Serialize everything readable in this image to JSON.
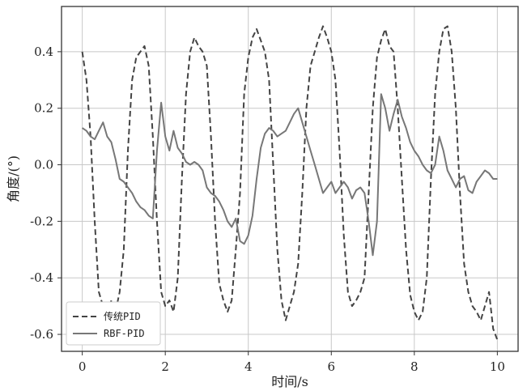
{
  "chart_data": {
    "type": "line",
    "xlabel": "时间/s",
    "ylabel": "角度/(°)",
    "xlim": [
      -0.5,
      10.5
    ],
    "ylim": [
      -0.66,
      0.56
    ],
    "xticks": [
      0,
      2,
      4,
      6,
      8,
      10
    ],
    "xtick_labels": [
      "0",
      "2",
      "4",
      "6",
      "8",
      "10"
    ],
    "yticks": [
      0.4,
      0.2,
      0.0,
      -0.2,
      -0.4,
      -0.6
    ],
    "ytick_labels": [
      "0.4",
      "0.2",
      "0.0",
      "-0.2",
      "-0.4",
      "-0.6"
    ],
    "grid": true,
    "legend_position": "lower-left",
    "series": [
      {
        "name": "传统PID",
        "style": "dashed",
        "color": "#444444",
        "x": [
          0.0,
          0.1,
          0.2,
          0.3,
          0.4,
          0.5,
          0.6,
          0.7,
          0.8,
          0.9,
          1.0,
          1.1,
          1.2,
          1.3,
          1.4,
          1.5,
          1.6,
          1.7,
          1.8,
          1.9,
          2.0,
          2.1,
          2.2,
          2.3,
          2.4,
          2.5,
          2.6,
          2.7,
          2.8,
          2.9,
          3.0,
          3.1,
          3.2,
          3.3,
          3.4,
          3.5,
          3.6,
          3.7,
          3.8,
          3.9,
          4.0,
          4.1,
          4.2,
          4.3,
          4.4,
          4.5,
          4.6,
          4.7,
          4.8,
          4.9,
          5.0,
          5.1,
          5.2,
          5.3,
          5.4,
          5.5,
          5.6,
          5.7,
          5.8,
          5.9,
          6.0,
          6.1,
          6.2,
          6.3,
          6.4,
          6.5,
          6.6,
          6.7,
          6.8,
          6.9,
          7.0,
          7.1,
          7.2,
          7.3,
          7.4,
          7.5,
          7.6,
          7.7,
          7.8,
          7.9,
          8.0,
          8.1,
          8.2,
          8.3,
          8.4,
          8.5,
          8.6,
          8.7,
          8.8,
          8.9,
          9.0,
          9.1,
          9.2,
          9.3,
          9.4,
          9.5,
          9.6,
          9.7,
          9.8,
          9.9,
          10.0
        ],
        "values": [
          0.4,
          0.3,
          0.1,
          -0.2,
          -0.45,
          -0.5,
          -0.55,
          -0.48,
          -0.52,
          -0.45,
          -0.3,
          0.05,
          0.3,
          0.38,
          0.4,
          0.42,
          0.35,
          0.1,
          -0.2,
          -0.45,
          -0.5,
          -0.48,
          -0.52,
          -0.4,
          -0.05,
          0.25,
          0.4,
          0.45,
          0.42,
          0.4,
          0.35,
          0.1,
          -0.2,
          -0.42,
          -0.48,
          -0.52,
          -0.48,
          -0.3,
          -0.1,
          0.25,
          0.38,
          0.45,
          0.48,
          0.44,
          0.4,
          0.3,
          0.0,
          -0.3,
          -0.48,
          -0.55,
          -0.5,
          -0.45,
          -0.35,
          -0.1,
          0.2,
          0.35,
          0.4,
          0.45,
          0.49,
          0.45,
          0.4,
          0.3,
          0.05,
          -0.25,
          -0.45,
          -0.5,
          -0.48,
          -0.45,
          -0.4,
          -0.1,
          0.2,
          0.38,
          0.44,
          0.48,
          0.42,
          0.4,
          0.2,
          -0.05,
          -0.3,
          -0.46,
          -0.52,
          -0.55,
          -0.52,
          -0.4,
          -0.05,
          0.25,
          0.4,
          0.48,
          0.49,
          0.4,
          0.2,
          -0.1,
          -0.35,
          -0.45,
          -0.5,
          -0.52,
          -0.55,
          -0.5,
          -0.45,
          -0.58,
          -0.62
        ]
      },
      {
        "name": "RBF-PID",
        "style": "solid",
        "color": "#777777",
        "x": [
          0.0,
          0.1,
          0.2,
          0.3,
          0.4,
          0.5,
          0.6,
          0.7,
          0.8,
          0.9,
          1.0,
          1.1,
          1.2,
          1.3,
          1.4,
          1.5,
          1.6,
          1.7,
          1.8,
          1.9,
          2.0,
          2.1,
          2.2,
          2.3,
          2.4,
          2.5,
          2.6,
          2.7,
          2.8,
          2.9,
          3.0,
          3.1,
          3.2,
          3.3,
          3.4,
          3.5,
          3.6,
          3.7,
          3.8,
          3.9,
          4.0,
          4.1,
          4.2,
          4.3,
          4.4,
          4.5,
          4.6,
          4.7,
          4.8,
          4.9,
          5.0,
          5.1,
          5.2,
          5.3,
          5.4,
          5.5,
          5.6,
          5.7,
          5.8,
          5.9,
          6.0,
          6.1,
          6.2,
          6.3,
          6.4,
          6.5,
          6.6,
          6.7,
          6.8,
          6.9,
          7.0,
          7.1,
          7.2,
          7.3,
          7.4,
          7.5,
          7.6,
          7.7,
          7.8,
          7.9,
          8.0,
          8.1,
          8.2,
          8.3,
          8.4,
          8.5,
          8.6,
          8.7,
          8.8,
          8.9,
          9.0,
          9.1,
          9.2,
          9.3,
          9.4,
          9.5,
          9.6,
          9.7,
          9.8,
          9.9,
          10.0
        ],
        "values": [
          0.13,
          0.12,
          0.1,
          0.09,
          0.12,
          0.15,
          0.1,
          0.08,
          0.02,
          -0.05,
          -0.06,
          -0.08,
          -0.1,
          -0.13,
          -0.15,
          -0.16,
          -0.18,
          -0.19,
          0.05,
          0.22,
          0.1,
          0.05,
          0.12,
          0.06,
          0.04,
          0.01,
          0.0,
          0.01,
          0.0,
          -0.02,
          -0.08,
          -0.1,
          -0.11,
          -0.13,
          -0.16,
          -0.2,
          -0.22,
          -0.19,
          -0.27,
          -0.28,
          -0.25,
          -0.18,
          -0.05,
          0.06,
          0.11,
          0.13,
          0.12,
          0.1,
          0.11,
          0.12,
          0.15,
          0.18,
          0.2,
          0.15,
          0.1,
          0.05,
          0.0,
          -0.05,
          -0.1,
          -0.08,
          -0.06,
          -0.1,
          -0.08,
          -0.06,
          -0.08,
          -0.12,
          -0.09,
          -0.08,
          -0.1,
          -0.2,
          -0.32,
          -0.2,
          0.25,
          0.2,
          0.12,
          0.18,
          0.23,
          0.17,
          0.13,
          0.08,
          0.05,
          0.03,
          0.0,
          -0.02,
          -0.03,
          0.0,
          0.1,
          0.05,
          -0.02,
          -0.05,
          -0.08,
          -0.05,
          -0.04,
          -0.09,
          -0.1,
          -0.06,
          -0.04,
          -0.02,
          -0.03,
          -0.05,
          -0.05
        ]
      }
    ]
  }
}
